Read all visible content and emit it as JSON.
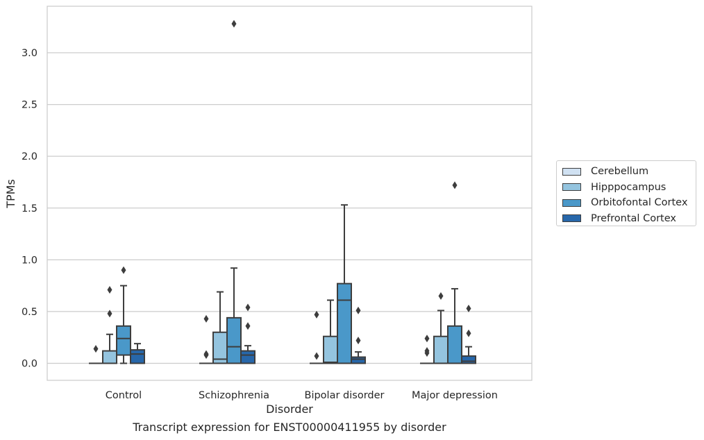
{
  "caption": "Transcript expression for ENST00000411955 by disorder",
  "colors": {
    "Cerebellum": "#d0e1f2",
    "Hipppocampus": "#94c4df",
    "Orbitofontal Cortex": "#4a98c9",
    "Prefrontal Cortex": "#2767aa"
  },
  "chart_data": {
    "type": "box",
    "title": "",
    "xlabel": "Disorder",
    "ylabel": "TPMs",
    "ylim": [
      -0.16,
      3.46
    ],
    "yticks": [
      "0.0",
      "0.5",
      "1.0",
      "1.5",
      "2.0",
      "2.5",
      "3.0"
    ],
    "grid": true,
    "legend_position": "right",
    "categories": [
      "Control",
      "Schizophrenia",
      "Bipolar disorder",
      "Major depression"
    ],
    "series": [
      {
        "name": "Cerebellum",
        "boxes": [
          {
            "whislo": 0,
            "q1": 0,
            "med": 0,
            "q3": 0,
            "whishi": 0,
            "fliers": [
              0.14
            ]
          },
          {
            "whislo": 0,
            "q1": 0,
            "med": 0,
            "q3": 0,
            "whishi": 0,
            "fliers": [
              0.43,
              0.09,
              0.08
            ]
          },
          {
            "whislo": 0,
            "q1": 0,
            "med": 0,
            "q3": 0,
            "whishi": 0,
            "fliers": [
              0.47,
              0.07
            ]
          },
          {
            "whislo": 0,
            "q1": 0,
            "med": 0,
            "q3": 0,
            "whishi": 0,
            "fliers": [
              0.24,
              0.12,
              0.1
            ]
          }
        ]
      },
      {
        "name": "Hipppocampus",
        "boxes": [
          {
            "whislo": 0,
            "q1": 0,
            "med": 0,
            "q3": 0.12,
            "whishi": 0.28,
            "fliers": [
              0.71,
              0.48
            ]
          },
          {
            "whislo": 0,
            "q1": 0,
            "med": 0.04,
            "q3": 0.3,
            "whishi": 0.69,
            "fliers": []
          },
          {
            "whislo": 0,
            "q1": 0,
            "med": 0.01,
            "q3": 0.26,
            "whishi": 0.61,
            "fliers": []
          },
          {
            "whislo": 0,
            "q1": 0,
            "med": 0,
            "q3": 0.26,
            "whishi": 0.51,
            "fliers": [
              0.65
            ]
          }
        ]
      },
      {
        "name": "Orbitofontal Cortex",
        "boxes": [
          {
            "whislo": 0,
            "q1": 0.08,
            "med": 0.24,
            "q3": 0.36,
            "whishi": 0.75,
            "fliers": [
              0.9
            ]
          },
          {
            "whislo": 0,
            "q1": 0,
            "med": 0.16,
            "q3": 0.44,
            "whishi": 0.92,
            "fliers": [
              3.28
            ]
          },
          {
            "whislo": 0,
            "q1": 0,
            "med": 0.61,
            "q3": 0.77,
            "whishi": 1.53,
            "fliers": []
          },
          {
            "whislo": 0,
            "q1": 0,
            "med": 0,
            "q3": 0.36,
            "whishi": 0.72,
            "fliers": [
              1.72
            ]
          }
        ]
      },
      {
        "name": "Prefrontal Cortex",
        "boxes": [
          {
            "whislo": 0,
            "q1": 0,
            "med": 0.09,
            "q3": 0.13,
            "whishi": 0.19,
            "fliers": []
          },
          {
            "whislo": 0,
            "q1": 0,
            "med": 0.08,
            "q3": 0.12,
            "whishi": 0.17,
            "fliers": [
              0.54,
              0.36
            ]
          },
          {
            "whislo": 0,
            "q1": 0,
            "med": 0.04,
            "q3": 0.06,
            "whishi": 0.11,
            "fliers": [
              0.51,
              0.22
            ]
          },
          {
            "whislo": 0,
            "q1": 0,
            "med": 0.02,
            "q3": 0.07,
            "whishi": 0.16,
            "fliers": [
              0.53,
              0.29
            ]
          }
        ]
      }
    ]
  }
}
